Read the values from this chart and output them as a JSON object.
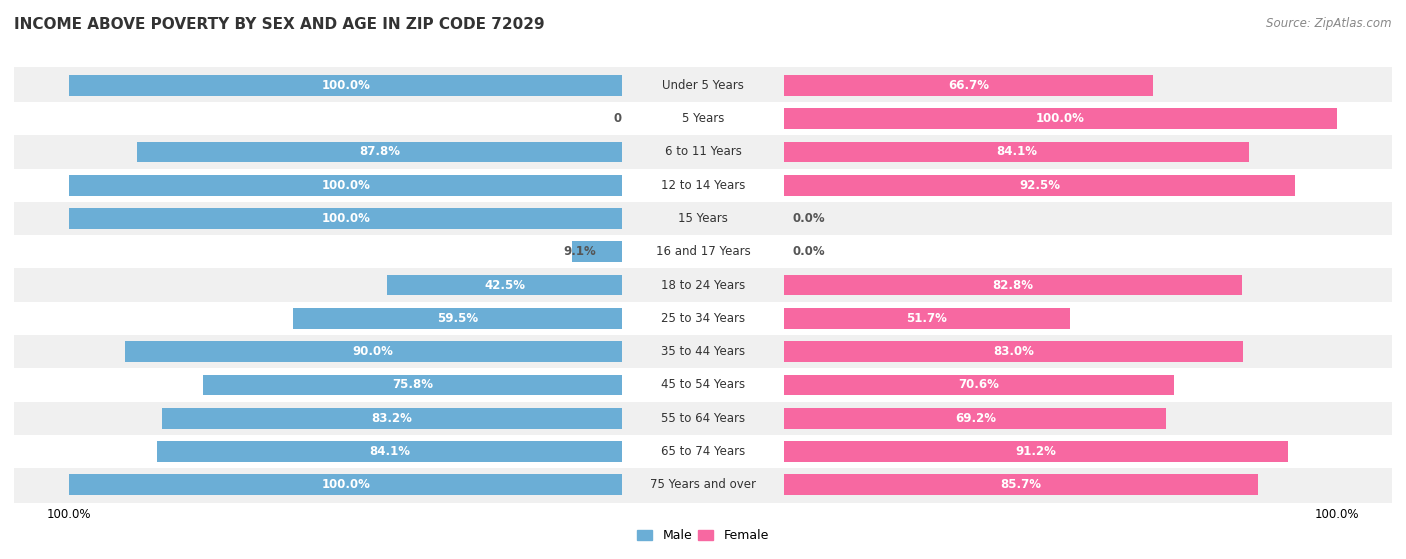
{
  "title": "INCOME ABOVE POVERTY BY SEX AND AGE IN ZIP CODE 72029",
  "source": "Source: ZipAtlas.com",
  "categories": [
    "Under 5 Years",
    "5 Years",
    "6 to 11 Years",
    "12 to 14 Years",
    "15 Years",
    "16 and 17 Years",
    "18 to 24 Years",
    "25 to 34 Years",
    "35 to 44 Years",
    "45 to 54 Years",
    "55 to 64 Years",
    "65 to 74 Years",
    "75 Years and over"
  ],
  "male": [
    100.0,
    0.0,
    87.8,
    100.0,
    100.0,
    9.1,
    42.5,
    59.5,
    90.0,
    75.8,
    83.2,
    84.1,
    100.0
  ],
  "female": [
    66.7,
    100.0,
    84.1,
    92.5,
    0.0,
    0.0,
    82.8,
    51.7,
    83.0,
    70.6,
    69.2,
    91.2,
    85.7
  ],
  "male_color": "#6baed6",
  "female_color": "#f768a1",
  "male_color_light": "#c6dbef",
  "female_color_light": "#fcc5dc",
  "bg_row_even": "#f0f0f0",
  "bg_row_odd": "#ffffff",
  "title_fontsize": 11,
  "label_fontsize": 8.5,
  "category_fontsize": 8.5,
  "source_fontsize": 8.5,
  "legend_labels": [
    "Male",
    "Female"
  ],
  "x_axis_label_left": "100.0%",
  "x_axis_label_right": "100.0%"
}
